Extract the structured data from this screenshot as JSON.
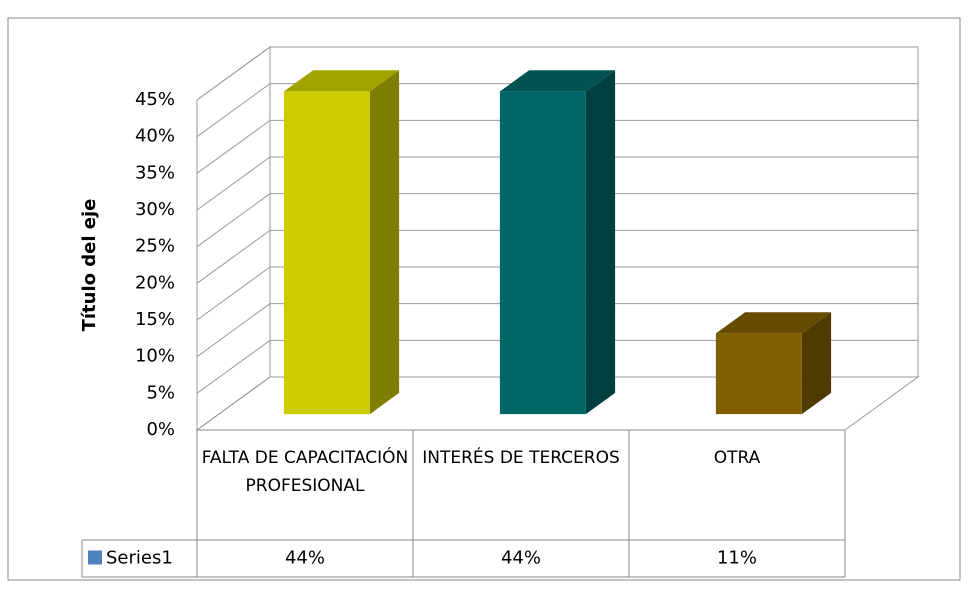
{
  "chart_data": {
    "type": "bar3d",
    "y_axis_title": "Título del eje",
    "categories": [
      "FALTA DE CAPACITACIÓN PROFESIONAL",
      "INTERÉS DE TERCEROS",
      "OTRA"
    ],
    "series": [
      {
        "name": "Series1",
        "color": "#4f81bd",
        "point_colors": [
          "#cccc00",
          "#006666",
          "#805f00"
        ],
        "values": [
          44,
          44,
          11
        ],
        "value_labels": [
          "44%",
          "44%",
          "11%"
        ]
      }
    ],
    "ylim": [
      0,
      45
    ],
    "yticks": [
      {
        "value": 0,
        "label": "0%"
      },
      {
        "value": 5,
        "label": "5%"
      },
      {
        "value": 10,
        "label": "10%"
      },
      {
        "value": 15,
        "label": "15%"
      },
      {
        "value": 20,
        "label": "20%"
      },
      {
        "value": 25,
        "label": "25%"
      },
      {
        "value": 30,
        "label": "30%"
      },
      {
        "value": 35,
        "label": "35%"
      },
      {
        "value": 40,
        "label": "40%"
      },
      {
        "value": 45,
        "label": "45%"
      }
    ],
    "grid": true,
    "data_table": true
  }
}
